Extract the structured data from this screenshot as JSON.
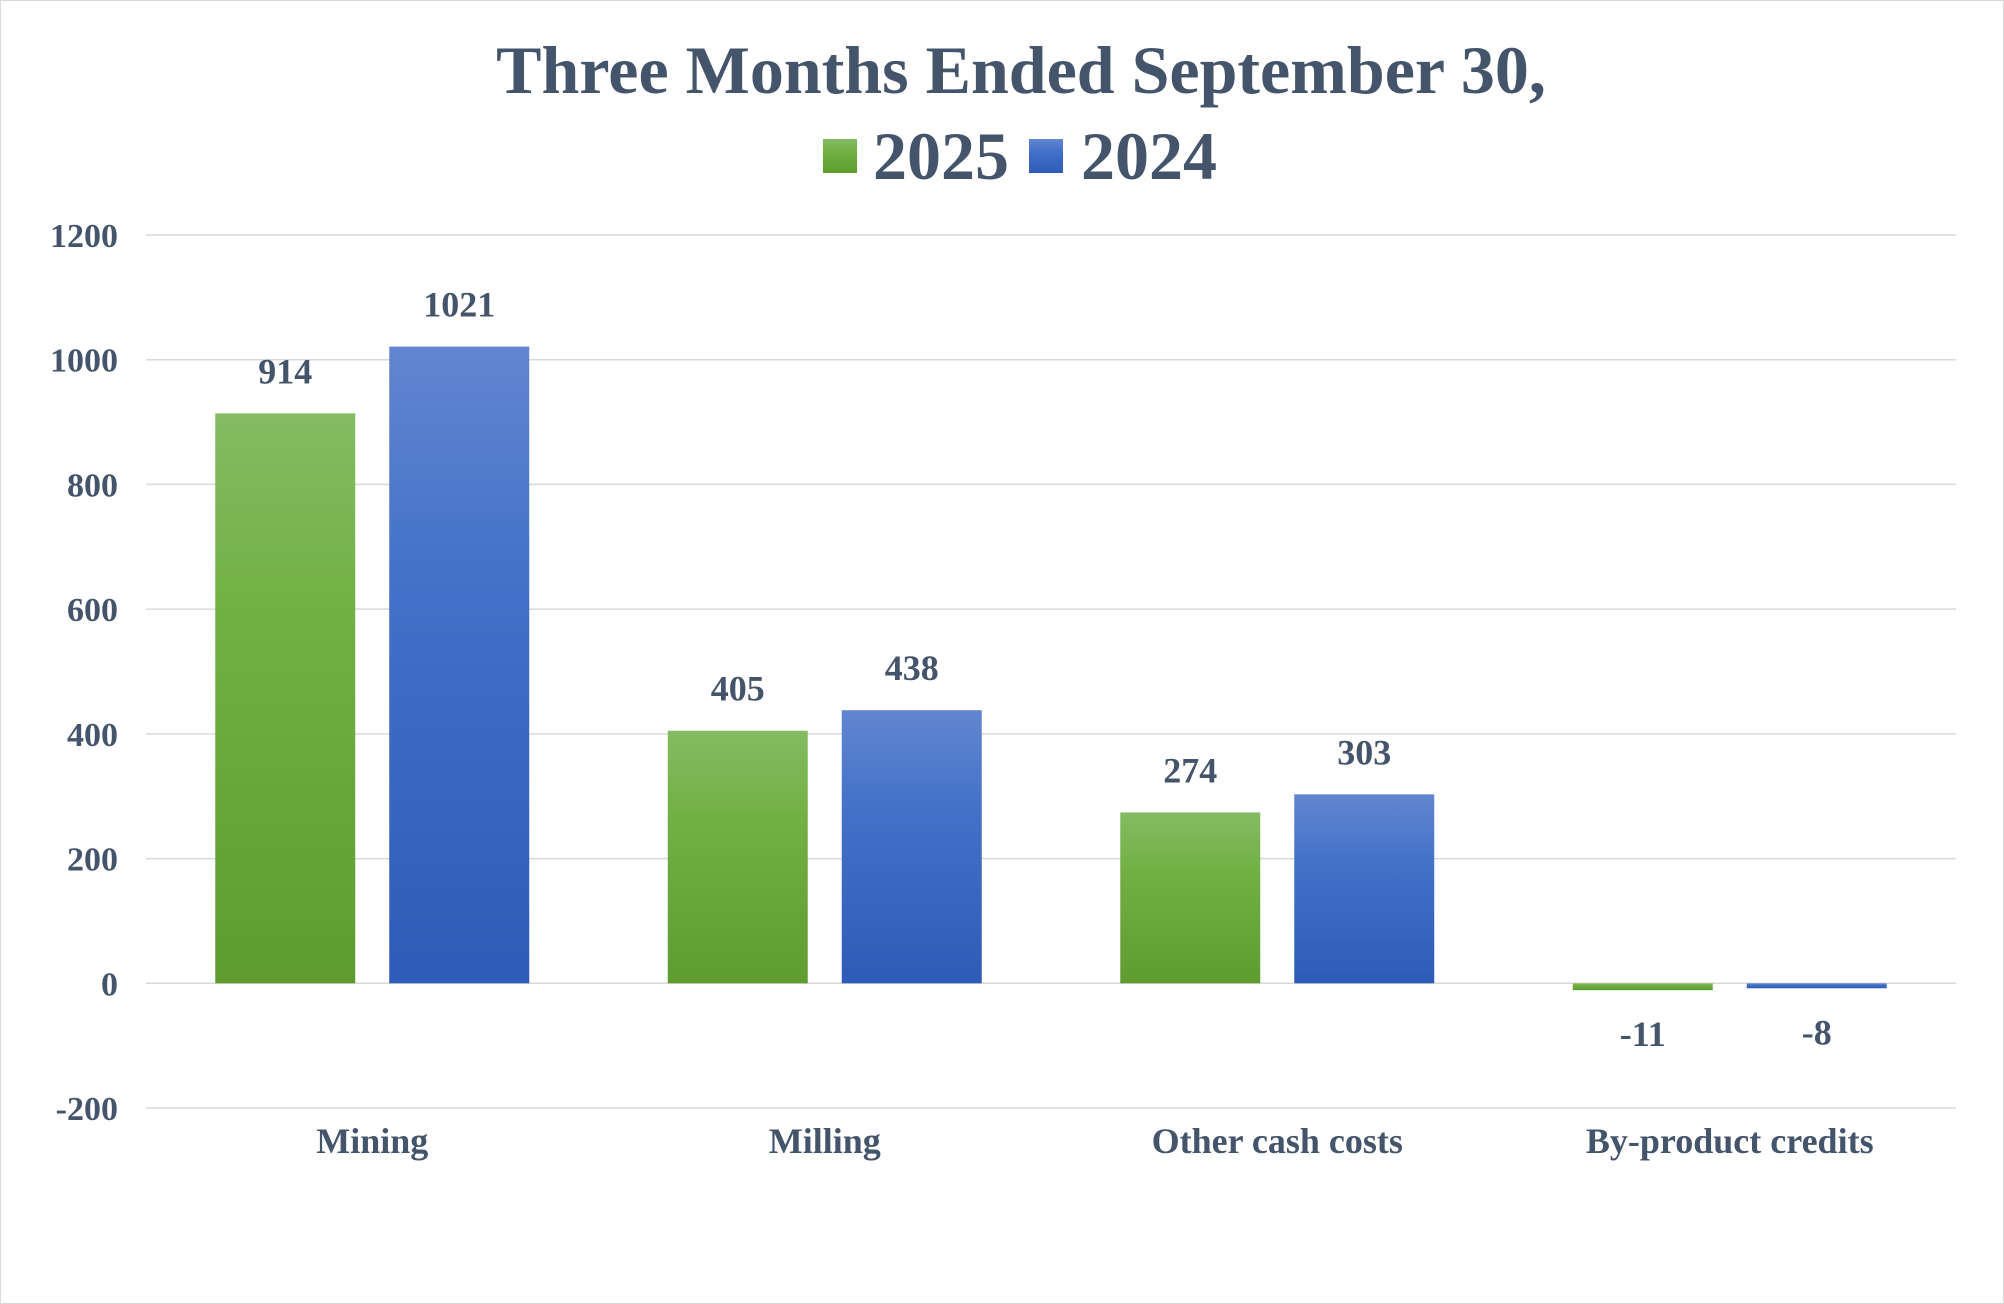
{
  "chart_data": {
    "type": "bar",
    "title": "Three Months Ended September 30,",
    "categories": [
      "Mining",
      "Milling",
      "Other cash costs",
      "By-product credits"
    ],
    "series": [
      {
        "name": "2025",
        "values": [
          914,
          405,
          274,
          -11
        ],
        "color": "#70ad47"
      },
      {
        "name": "2024",
        "values": [
          1021,
          438,
          303,
          -8
        ],
        "color": "#4472c4"
      }
    ],
    "yticks": [
      "1200",
      "1000",
      "800",
      "600",
      "400",
      "200",
      "0",
      "-200"
    ],
    "ylim": [
      -200,
      1200
    ],
    "grid": true,
    "legend_position": "top"
  }
}
